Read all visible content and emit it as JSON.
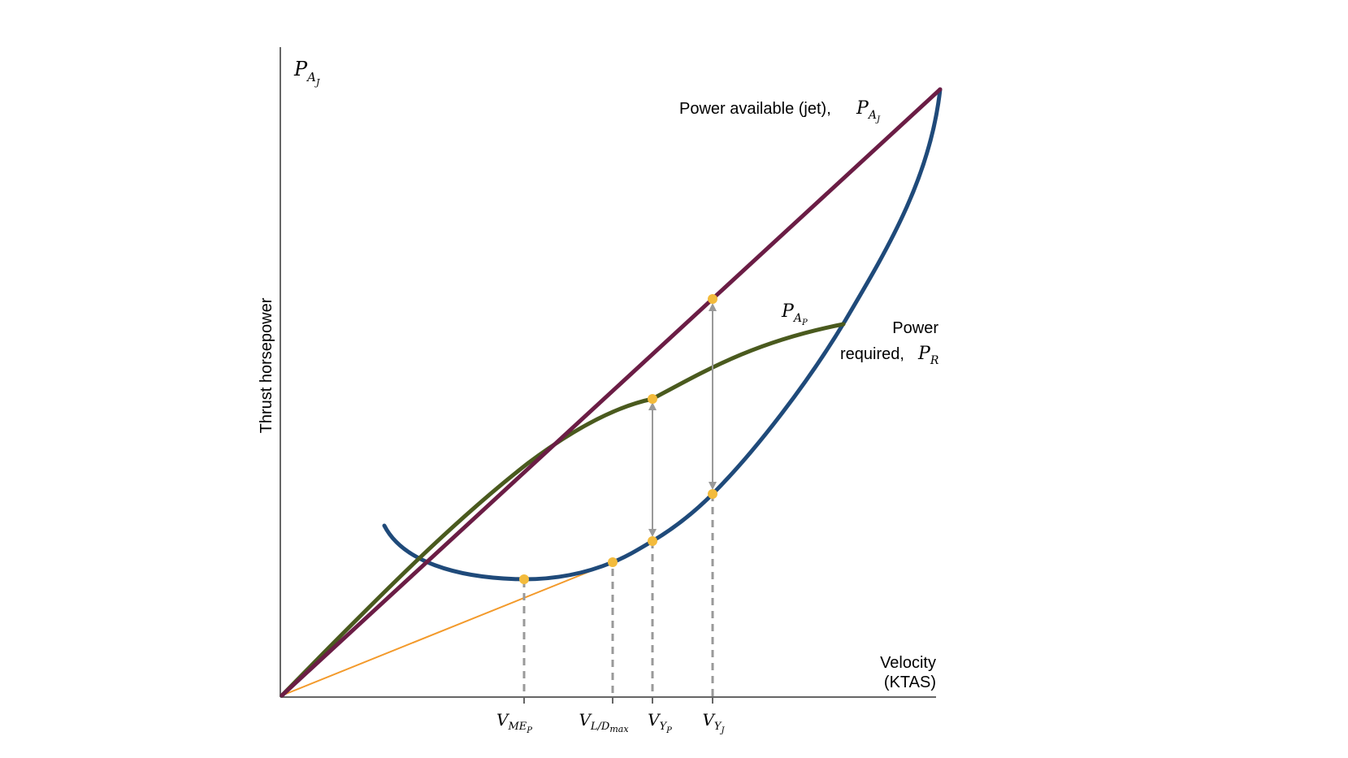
{
  "y_axis_label": "Thrust horsepower",
  "x_axis_label": [
    "Velocity",
    "(KTAS)"
  ],
  "y_axis_symbol": {
    "main": "P",
    "sub": "A",
    "subsub": "J"
  },
  "labels": {
    "power_available_jet": {
      "text": "Power available (jet),",
      "main": "P",
      "sub": "A",
      "subsub": "J"
    },
    "power_available_prop": {
      "main": "P",
      "sub": "A",
      "subsub": "P"
    },
    "power_required": {
      "line1": "Power",
      "line2": "required,",
      "main": "P",
      "sub": "R"
    }
  },
  "velocity_marks": [
    {
      "id": "vme",
      "main": "V",
      "sub": "ME",
      "subsub": "P"
    },
    {
      "id": "vld",
      "main": "V",
      "sub": "L/D",
      "subsub": "max"
    },
    {
      "id": "vyp",
      "main": "V",
      "sub": "Y",
      "subsub": "P"
    },
    {
      "id": "vyj",
      "main": "V",
      "sub": "Y",
      "subsub": "J"
    }
  ],
  "colors": {
    "power_available_jet": "#6b1d45",
    "power_available_prop": "#4a5a1e",
    "power_required": "#1f4a7a",
    "tangent_line": "#f39a2b",
    "points": "#f3bb3c",
    "arrows": "#999999",
    "dashes": "#999999",
    "axes": "#666666"
  }
}
